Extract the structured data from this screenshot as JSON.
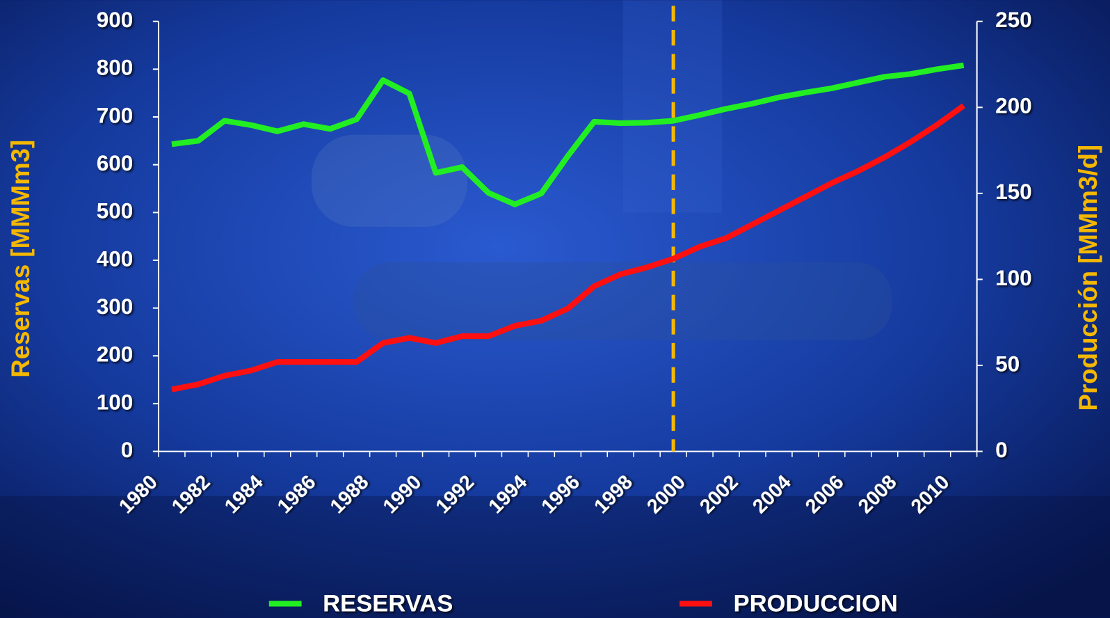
{
  "chart_data": {
    "type": "line",
    "categories": [
      "1980",
      null,
      "1982",
      null,
      "1984",
      null,
      "1986",
      null,
      "1988",
      null,
      "1990",
      null,
      "1992",
      null,
      "1994",
      null,
      "1996",
      null,
      "1998",
      null,
      "2000",
      null,
      "2002",
      null,
      "2004",
      null,
      "2006",
      null,
      "2008",
      null,
      "2010"
    ],
    "ylabel": "Reservas [MMMm3]",
    "y2label": "Producción [MMm3/d]",
    "ylim": [
      0,
      900
    ],
    "yticks": [
      0,
      100,
      200,
      300,
      400,
      500,
      600,
      700,
      800,
      900
    ],
    "y2lim": [
      0,
      250
    ],
    "y2ticks": [
      0,
      50,
      100,
      150,
      200,
      250
    ],
    "vline_index": 19,
    "vline_color": "#f5b800",
    "series": [
      {
        "name": "RESERVAS",
        "color": "#22ee22",
        "values": [
          643,
          650,
          692,
          683,
          670,
          685,
          675,
          695,
          777,
          749,
          583,
          595,
          541,
          517,
          540,
          618,
          690,
          687,
          688,
          692,
          704,
          717,
          728,
          741,
          751,
          760,
          772,
          784,
          790,
          800,
          808
        ]
      },
      {
        "name": "PRODUCCION",
        "color": "#ff1010",
        "axis": "y2",
        "values": [
          36,
          39,
          44,
          47,
          52,
          52,
          52,
          52,
          63,
          66,
          63,
          67,
          67,
          73,
          76,
          83,
          96,
          103,
          107,
          112,
          119,
          124,
          132,
          140,
          148,
          156,
          163,
          171,
          180,
          190,
          201
        ]
      }
    ]
  }
}
